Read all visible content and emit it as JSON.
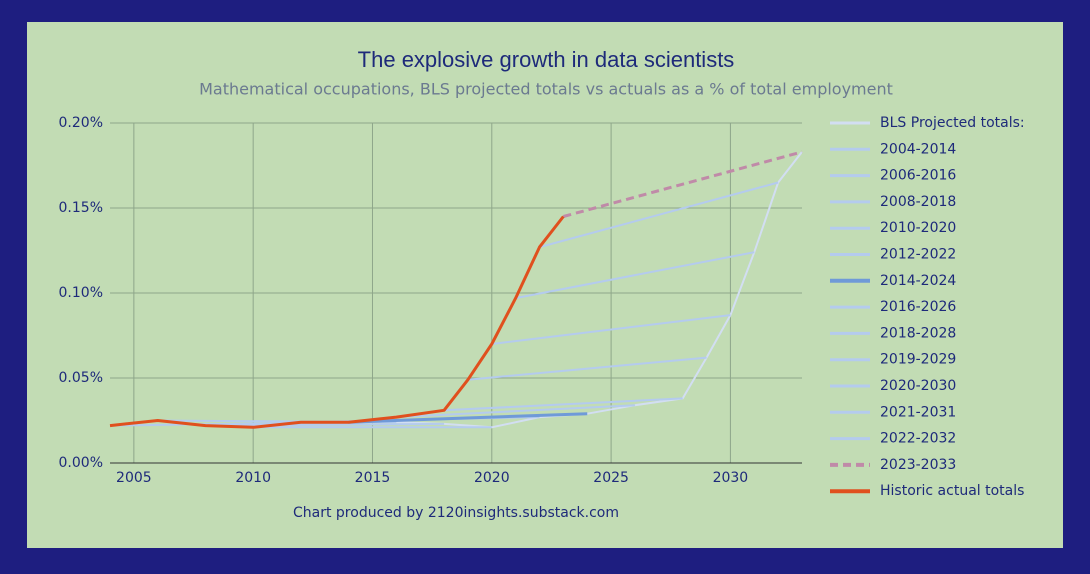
{
  "chart_data": {
    "type": "line",
    "title": "The explosive growth in data scientists",
    "subtitle": "Mathematical occupations, BLS projected totals vs actuals as a % of total employment",
    "footer": "Chart produced by 2120insights.substack.com",
    "xlim": [
      2004,
      2033
    ],
    "xticks": [
      2005,
      2010,
      2015,
      2020,
      2025,
      2030
    ],
    "ylim": [
      0,
      0.2
    ],
    "yticks": [
      {
        "value": 0,
        "label": "0.00%"
      },
      {
        "value": 0.05,
        "label": "0.05%"
      },
      {
        "value": 0.1,
        "label": "0.10%"
      },
      {
        "value": 0.15,
        "label": "0.15%"
      },
      {
        "value": 0.2,
        "label": "0.20%"
      }
    ],
    "grid": true,
    "legend": "right",
    "series": [
      {
        "name": "BLS Projected totals:",
        "color": "#d2def2",
        "style": "solid",
        "x": [
          2014,
          2016,
          2018,
          2020,
          2022,
          2024,
          2026,
          2028,
          2029,
          2030,
          2031,
          2032,
          2033
        ],
        "values": [
          0.024,
          0.024,
          0.023,
          0.021,
          0.027,
          0.029,
          0.034,
          0.038,
          0.062,
          0.087,
          0.124,
          0.165,
          0.183
        ]
      },
      {
        "name": "2004-2014",
        "color": "#b4cbee",
        "style": "solid",
        "x": [
          2004,
          2014
        ],
        "values": [
          0.022,
          0.024
        ]
      },
      {
        "name": "2006-2016",
        "color": "#b4cbee",
        "style": "solid",
        "x": [
          2006,
          2016
        ],
        "values": [
          0.025,
          0.024
        ]
      },
      {
        "name": "2008-2018",
        "color": "#b4cbee",
        "style": "solid",
        "x": [
          2008,
          2018
        ],
        "values": [
          0.022,
          0.023
        ]
      },
      {
        "name": "2010-2020",
        "color": "#b4cbee",
        "style": "solid",
        "x": [
          2010,
          2020
        ],
        "values": [
          0.021,
          0.021
        ]
      },
      {
        "name": "2012-2022",
        "color": "#b4cbee",
        "style": "solid",
        "x": [
          2012,
          2022
        ],
        "values": [
          0.024,
          0.027
        ]
      },
      {
        "name": "2014-2024",
        "color": "#6f9ad8",
        "style": "thick",
        "x": [
          2014,
          2024
        ],
        "values": [
          0.024,
          0.029
        ]
      },
      {
        "name": "2016-2026",
        "color": "#b4cbee",
        "style": "solid",
        "x": [
          2016,
          2026
        ],
        "values": [
          0.027,
          0.034
        ]
      },
      {
        "name": "2018-2028",
        "color": "#b4cbee",
        "style": "solid",
        "x": [
          2018,
          2028
        ],
        "values": [
          0.031,
          0.038
        ]
      },
      {
        "name": "2019-2029",
        "color": "#b4cbee",
        "style": "solid",
        "x": [
          2019,
          2029
        ],
        "values": [
          0.049,
          0.062
        ]
      },
      {
        "name": "2020-2030",
        "color": "#b4cbee",
        "style": "solid",
        "x": [
          2020,
          2030
        ],
        "values": [
          0.07,
          0.087
        ]
      },
      {
        "name": "2021-2031",
        "color": "#b4cbee",
        "style": "solid",
        "x": [
          2021,
          2031
        ],
        "values": [
          0.097,
          0.124
        ]
      },
      {
        "name": "2022-2032",
        "color": "#b4cbee",
        "style": "solid",
        "x": [
          2022,
          2032
        ],
        "values": [
          0.127,
          0.165
        ]
      },
      {
        "name": "2023-2033",
        "color": "#c08aa8",
        "style": "dashed",
        "x": [
          2023,
          2033
        ],
        "values": [
          0.145,
          0.183
        ]
      },
      {
        "name": "Historic actual totals",
        "color": "#e0501e",
        "style": "thick",
        "x": [
          2004,
          2006,
          2008,
          2010,
          2012,
          2014,
          2016,
          2018,
          2019,
          2020,
          2021,
          2022,
          2023
        ],
        "values": [
          0.022,
          0.025,
          0.022,
          0.021,
          0.024,
          0.024,
          0.027,
          0.031,
          0.049,
          0.07,
          0.097,
          0.127,
          0.145
        ]
      }
    ]
  }
}
